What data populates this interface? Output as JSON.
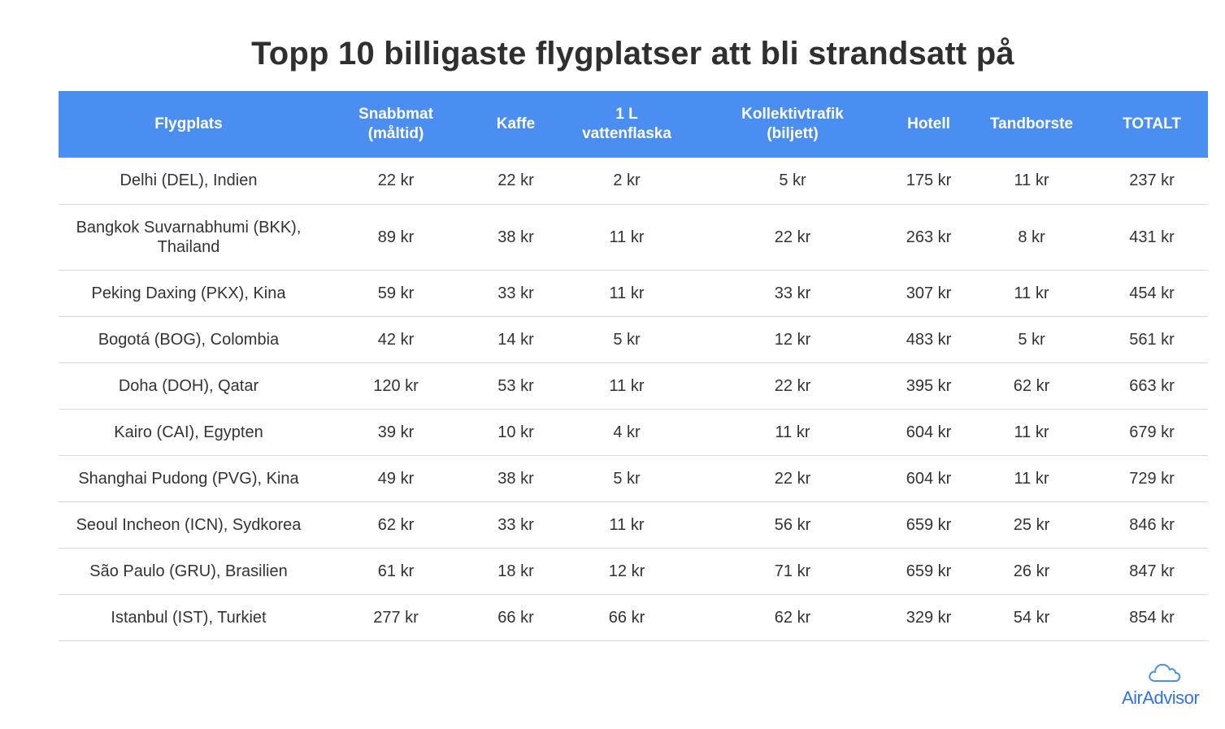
{
  "title": "Topp 10 billigaste flygplatser att bli strandsatt på",
  "logo": {
    "text": "AirAdvisor",
    "icon": "cloud-icon",
    "color": "#2f73e0"
  },
  "colors": {
    "header_bg": "#4a8ef2",
    "header_text": "#ffffff",
    "row_border": "#d8d8d8"
  },
  "chart_data": {
    "type": "table",
    "title": "Topp 10 billigaste flygplatser att bli strandsatt på",
    "columns": [
      "Flygplats",
      "Snabbmat\n(måltid)",
      "Kaffe",
      "1 L\nvattenflaska",
      "Kollektivtrafik\n(biljett)",
      "Hotell",
      "Tandborste",
      "TOTALT"
    ],
    "rows": [
      [
        "Delhi (DEL), Indien",
        "22 kr",
        "22 kr",
        "2 kr",
        "5 kr",
        "175 kr",
        "11 kr",
        "237 kr"
      ],
      [
        "Bangkok Suvarnabhumi (BKK),\nThailand",
        "89 kr",
        "38 kr",
        "11 kr",
        "22 kr",
        "263 kr",
        "8 kr",
        "431 kr"
      ],
      [
        "Peking Daxing (PKX), Kina",
        "59 kr",
        "33 kr",
        "11 kr",
        "33 kr",
        "307 kr",
        "11 kr",
        "454 kr"
      ],
      [
        "Bogotá (BOG), Colombia",
        "42 kr",
        "14 kr",
        "5 kr",
        "12 kr",
        "483 kr",
        "5 kr",
        "561 kr"
      ],
      [
        "Doha (DOH), Qatar",
        "120 kr",
        "53 kr",
        "11 kr",
        "22 kr",
        "395 kr",
        "62 kr",
        "663 kr"
      ],
      [
        "Kairo (CAI), Egypten",
        "39 kr",
        "10 kr",
        "4 kr",
        "11 kr",
        "604 kr",
        "11 kr",
        "679 kr"
      ],
      [
        "Shanghai Pudong (PVG), Kina",
        "49 kr",
        "38 kr",
        "5 kr",
        "22 kr",
        "604 kr",
        "11 kr",
        "729 kr"
      ],
      [
        "Seoul Incheon (ICN), Sydkorea",
        "62 kr",
        "33 kr",
        "11 kr",
        "56 kr",
        "659 kr",
        "25 kr",
        "846 kr"
      ],
      [
        "São Paulo (GRU), Brasilien",
        "61 kr",
        "18 kr",
        "12 kr",
        "71 kr",
        "659 kr",
        "26 kr",
        "847 kr"
      ],
      [
        "Istanbul (IST), Turkiet",
        "277 kr",
        "66 kr",
        "66 kr",
        "62 kr",
        "329 kr",
        "54 kr",
        "854 kr"
      ]
    ]
  }
}
